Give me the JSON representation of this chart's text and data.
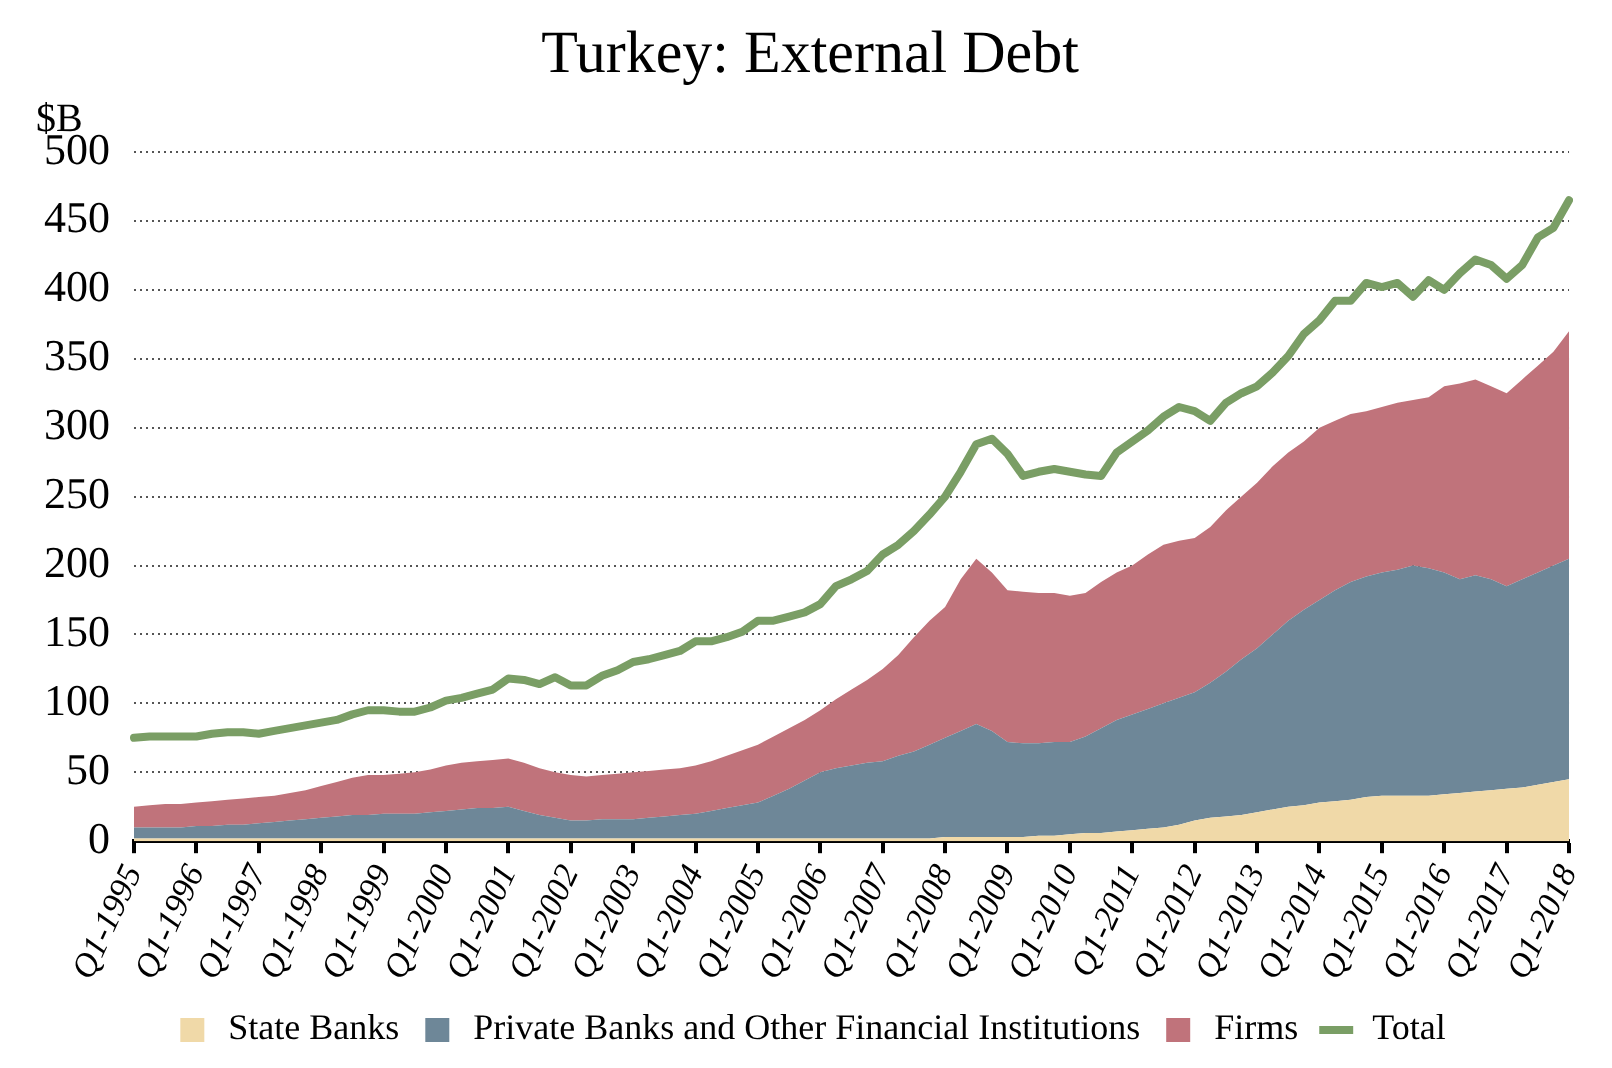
{
  "chart_data": {
    "type": "area",
    "stacked": true,
    "title": "Turkey: External Debt",
    "ylabel": "$B",
    "categories": [
      "Q1-1995",
      null,
      null,
      null,
      "Q1-1996",
      null,
      null,
      null,
      "Q1-1997",
      null,
      null,
      null,
      "Q1-1998",
      null,
      null,
      null,
      "Q1-1999",
      null,
      null,
      null,
      "Q1-2000",
      null,
      null,
      null,
      "Q1-2001",
      null,
      null,
      null,
      "Q1-2002",
      null,
      null,
      null,
      "Q1-2003",
      null,
      null,
      null,
      "Q1-2004",
      null,
      null,
      null,
      "Q1-2005",
      null,
      null,
      null,
      "Q1-2006",
      null,
      null,
      null,
      "Q1-2007",
      null,
      null,
      null,
      "Q1-2008",
      null,
      null,
      null,
      "Q1-2009",
      null,
      null,
      null,
      "Q1-2010",
      null,
      null,
      null,
      "Q1-2011",
      null,
      null,
      null,
      "Q1-2012",
      null,
      null,
      null,
      "Q1-2013",
      null,
      null,
      null,
      "Q1-2014",
      null,
      null,
      null,
      "Q1-2015",
      null,
      null,
      null,
      "Q1-2016",
      null,
      null,
      null,
      "Q1-2017",
      null,
      null,
      null,
      "Q1-2018"
    ],
    "series": [
      {
        "name": "State Banks",
        "color": "#f0d9a8",
        "values": [
          2,
          2,
          2,
          2,
          2,
          2,
          2,
          2,
          2,
          2,
          2,
          2,
          2,
          2,
          2,
          2,
          2,
          2,
          2,
          2,
          2,
          2,
          2,
          2,
          2,
          2,
          2,
          2,
          2,
          2,
          2,
          2,
          2,
          2,
          2,
          2,
          2,
          2,
          2,
          2,
          2,
          2,
          2,
          2,
          2,
          2,
          2,
          2,
          2,
          2,
          2,
          2,
          3,
          3,
          3,
          3,
          3,
          3,
          4,
          4,
          5,
          6,
          6,
          7,
          8,
          9,
          10,
          12,
          15,
          17,
          18,
          19,
          21,
          23,
          25,
          26,
          28,
          29,
          30,
          32,
          33,
          33,
          33,
          33,
          34,
          35,
          36,
          37,
          38,
          39,
          41,
          43,
          45
        ]
      },
      {
        "name": "Private Banks and Other Financial Institutions",
        "color": "#6e8798",
        "values": [
          8,
          8,
          8,
          8,
          9,
          9,
          10,
          10,
          11,
          12,
          13,
          14,
          15,
          16,
          17,
          17,
          18,
          18,
          18,
          19,
          20,
          21,
          22,
          22,
          23,
          20,
          17,
          15,
          13,
          13,
          14,
          14,
          14,
          15,
          16,
          17,
          18,
          20,
          22,
          24,
          26,
          31,
          36,
          42,
          48,
          51,
          53,
          55,
          56,
          60,
          63,
          68,
          72,
          77,
          82,
          77,
          69,
          68,
          67,
          68,
          67,
          70,
          76,
          81,
          84,
          87,
          90,
          92,
          93,
          98,
          105,
          113,
          119,
          127,
          135,
          142,
          147,
          153,
          158,
          160,
          162,
          164,
          167,
          165,
          161,
          155,
          157,
          153,
          147,
          151,
          154,
          157,
          160
        ]
      },
      {
        "name": "Firms",
        "color": "#c0737b",
        "values": [
          15,
          16,
          17,
          17,
          17,
          18,
          18,
          19,
          19,
          19,
          20,
          21,
          23,
          25,
          27,
          29,
          28,
          29,
          30,
          31,
          33,
          34,
          34,
          35,
          35,
          35,
          34,
          33,
          33,
          32,
          32,
          33,
          34,
          34,
          34,
          34,
          35,
          36,
          38,
          40,
          42,
          43,
          44,
          44,
          45,
          50,
          55,
          60,
          67,
          73,
          83,
          90,
          95,
          110,
          120,
          115,
          110,
          110,
          109,
          108,
          106,
          104,
          106,
          107,
          108,
          112,
          115,
          114,
          112,
          113,
          117,
          118,
          120,
          122,
          122,
          122,
          125,
          123,
          122,
          120,
          120,
          121,
          120,
          124,
          135,
          142,
          142,
          140,
          140,
          145,
          150,
          155,
          165
        ]
      },
      {
        "name": "Total",
        "type": "line",
        "color": "#7a9e65",
        "values": [
          75,
          76,
          76,
          76,
          76,
          78,
          79,
          79,
          78,
          80,
          82,
          84,
          86,
          88,
          92,
          95,
          95,
          94,
          94,
          97,
          102,
          104,
          107,
          110,
          118,
          117,
          114,
          119,
          113,
          113,
          120,
          124,
          130,
          132,
          135,
          138,
          145,
          145,
          148,
          152,
          160,
          160,
          163,
          166,
          172,
          185,
          190,
          196,
          208,
          215,
          225,
          237,
          250,
          268,
          288,
          292,
          281,
          265,
          268,
          270,
          268,
          266,
          265,
          282,
          290,
          298,
          308,
          315,
          312,
          305,
          318,
          325,
          330,
          340,
          352,
          368,
          378,
          392,
          392,
          405,
          402,
          405,
          395,
          407,
          400,
          412,
          422,
          418,
          408,
          418,
          438,
          445,
          465
        ]
      }
    ],
    "ylim": [
      0,
      500
    ],
    "yticks": [
      0,
      50,
      100,
      150,
      200,
      250,
      300,
      350,
      400,
      450,
      500
    ],
    "grid": "y",
    "legend": "bottom",
    "line_style": "solid",
    "marker": "none"
  }
}
